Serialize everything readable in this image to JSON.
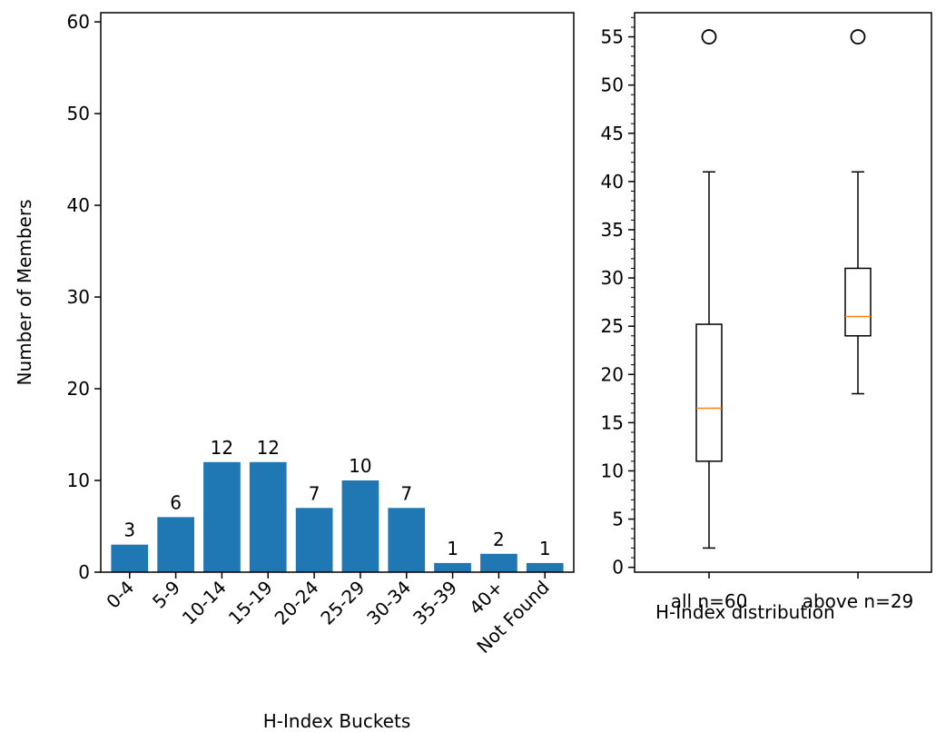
{
  "chart_data": [
    {
      "type": "bar",
      "categories": [
        "0-4",
        "5-9",
        "10-14",
        "15-19",
        "20-24",
        "25-29",
        "30-34",
        "35-39",
        "40+",
        "Not Found"
      ],
      "values": [
        3,
        6,
        12,
        12,
        7,
        10,
        7,
        1,
        2,
        1
      ],
      "data_labels": [
        "3",
        "6",
        "12",
        "12",
        "7",
        "10",
        "7",
        "1",
        "2",
        "1"
      ],
      "xlabel": "H-Index Buckets",
      "ylabel": "Number of Members",
      "ylim": [
        0,
        61
      ],
      "yticks": [
        0,
        10,
        20,
        30,
        40,
        50,
        60
      ],
      "bar_color": "#1f77b4",
      "grid": false
    },
    {
      "type": "box",
      "categories": [
        "all n=60",
        "above n=29"
      ],
      "boxes": [
        {
          "whisker_low": 2,
          "q1": 11,
          "median": 16.5,
          "q3": 25.2,
          "whisker_high": 41,
          "outliers": [
            55
          ]
        },
        {
          "whisker_low": 18,
          "q1": 24,
          "median": 26,
          "q3": 31,
          "whisker_high": 41,
          "outliers": [
            55
          ]
        }
      ],
      "xlabel": "H-Index distribution",
      "ylim": [
        -0.5,
        57.5
      ],
      "yticks": [
        0,
        5,
        10,
        15,
        20,
        25,
        30,
        35,
        40,
        45,
        50,
        55
      ],
      "median_color": "#ff7f0e",
      "grid": false
    }
  ]
}
